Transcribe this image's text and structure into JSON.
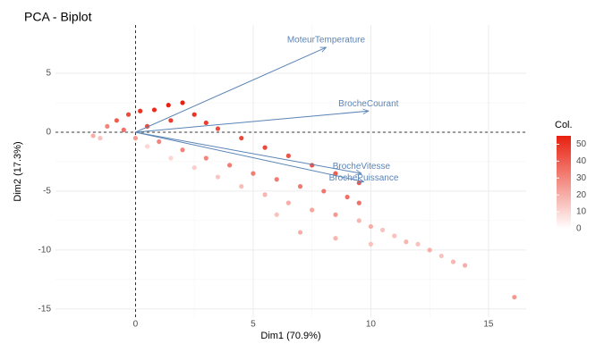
{
  "chart_data": {
    "type": "biplot",
    "title": "PCA - Biplot",
    "x_label": "Dim1 (70.9%)",
    "y_label": "Dim2 (17.3%)",
    "xlim": [
      -3.4,
      16.6
    ],
    "ylim": [
      -15.7,
      9.1
    ],
    "xticks": [
      0,
      5,
      10,
      15
    ],
    "yticks": [
      -15,
      -10,
      -5,
      0,
      5
    ],
    "grid": true,
    "x": [
      -1.8,
      -1.2,
      -0.8,
      -0.3,
      0.2,
      0.8,
      1.4,
      2.0,
      2.5,
      1.5,
      0.5,
      -0.5,
      3.0,
      -1.5,
      0.0,
      3.5,
      4.5,
      5.5,
      6.5,
      7.5,
      8.5,
      9.5,
      1,
      2,
      3,
      4,
      5,
      6,
      7,
      8,
      9,
      9.5,
      0.5,
      1.5,
      2.5,
      3.5,
      4.5,
      5.5,
      6.5,
      7.5,
      8.5,
      9.5,
      10,
      10.5,
      11,
      11.5,
      12,
      12.5,
      13,
      13.5,
      14,
      7,
      8.5,
      10,
      6,
      16.1
    ],
    "values": [
      -0.3,
      0.5,
      1.0,
      1.5,
      1.8,
      1.9,
      2.3,
      2.5,
      1.5,
      1.0,
      0.5,
      0.2,
      0.8,
      -0.5,
      -0.5,
      0.3,
      -0.5,
      -1.3,
      -2.0,
      -2.8,
      -3.5,
      -4.3,
      -0.8,
      -1.5,
      -2.2,
      -2.8,
      -3.5,
      -4,
      -4.6,
      -5,
      -5.5,
      -6,
      -1.2,
      -2.2,
      -3.0,
      -3.8,
      -4.6,
      -5.3,
      -6,
      -6.6,
      -7,
      -7.5,
      -8,
      -8.3,
      -8.8,
      -9.3,
      -9.5,
      -10,
      -10.5,
      -11,
      -11.3,
      -8.5,
      -9,
      -9.5,
      -7,
      -14
    ],
    "col": [
      20,
      30,
      40,
      45,
      50,
      52,
      55,
      55,
      50,
      48,
      45,
      35,
      48,
      15,
      25,
      45,
      45,
      45,
      42,
      42,
      40,
      40,
      30,
      30,
      30,
      32,
      32,
      32,
      33,
      34,
      35,
      35,
      10,
      10,
      12,
      14,
      16,
      18,
      20,
      22,
      25,
      18,
      20,
      15,
      15,
      18,
      15,
      20,
      15,
      18,
      20,
      20,
      18,
      15,
      15,
      25
    ],
    "color_low": "#ffffff",
    "color_high": "#e8200f",
    "arrow_color": "#5b84b6",
    "variables": [
      {
        "name": "MoteurTemperature",
        "x": 8.1,
        "y": 7.2
      },
      {
        "name": "BrocheCourant",
        "x": 9.9,
        "y": 1.8
      },
      {
        "name": "BrocheVitesse",
        "x": 9.6,
        "y": -3.5
      },
      {
        "name": "BrochePuissance",
        "x": 9.7,
        "y": -4.2
      }
    ],
    "legend": {
      "title": "Col.",
      "lim": [
        0,
        55
      ],
      "ticks": [
        0,
        10,
        20,
        30,
        40,
        50
      ]
    }
  }
}
